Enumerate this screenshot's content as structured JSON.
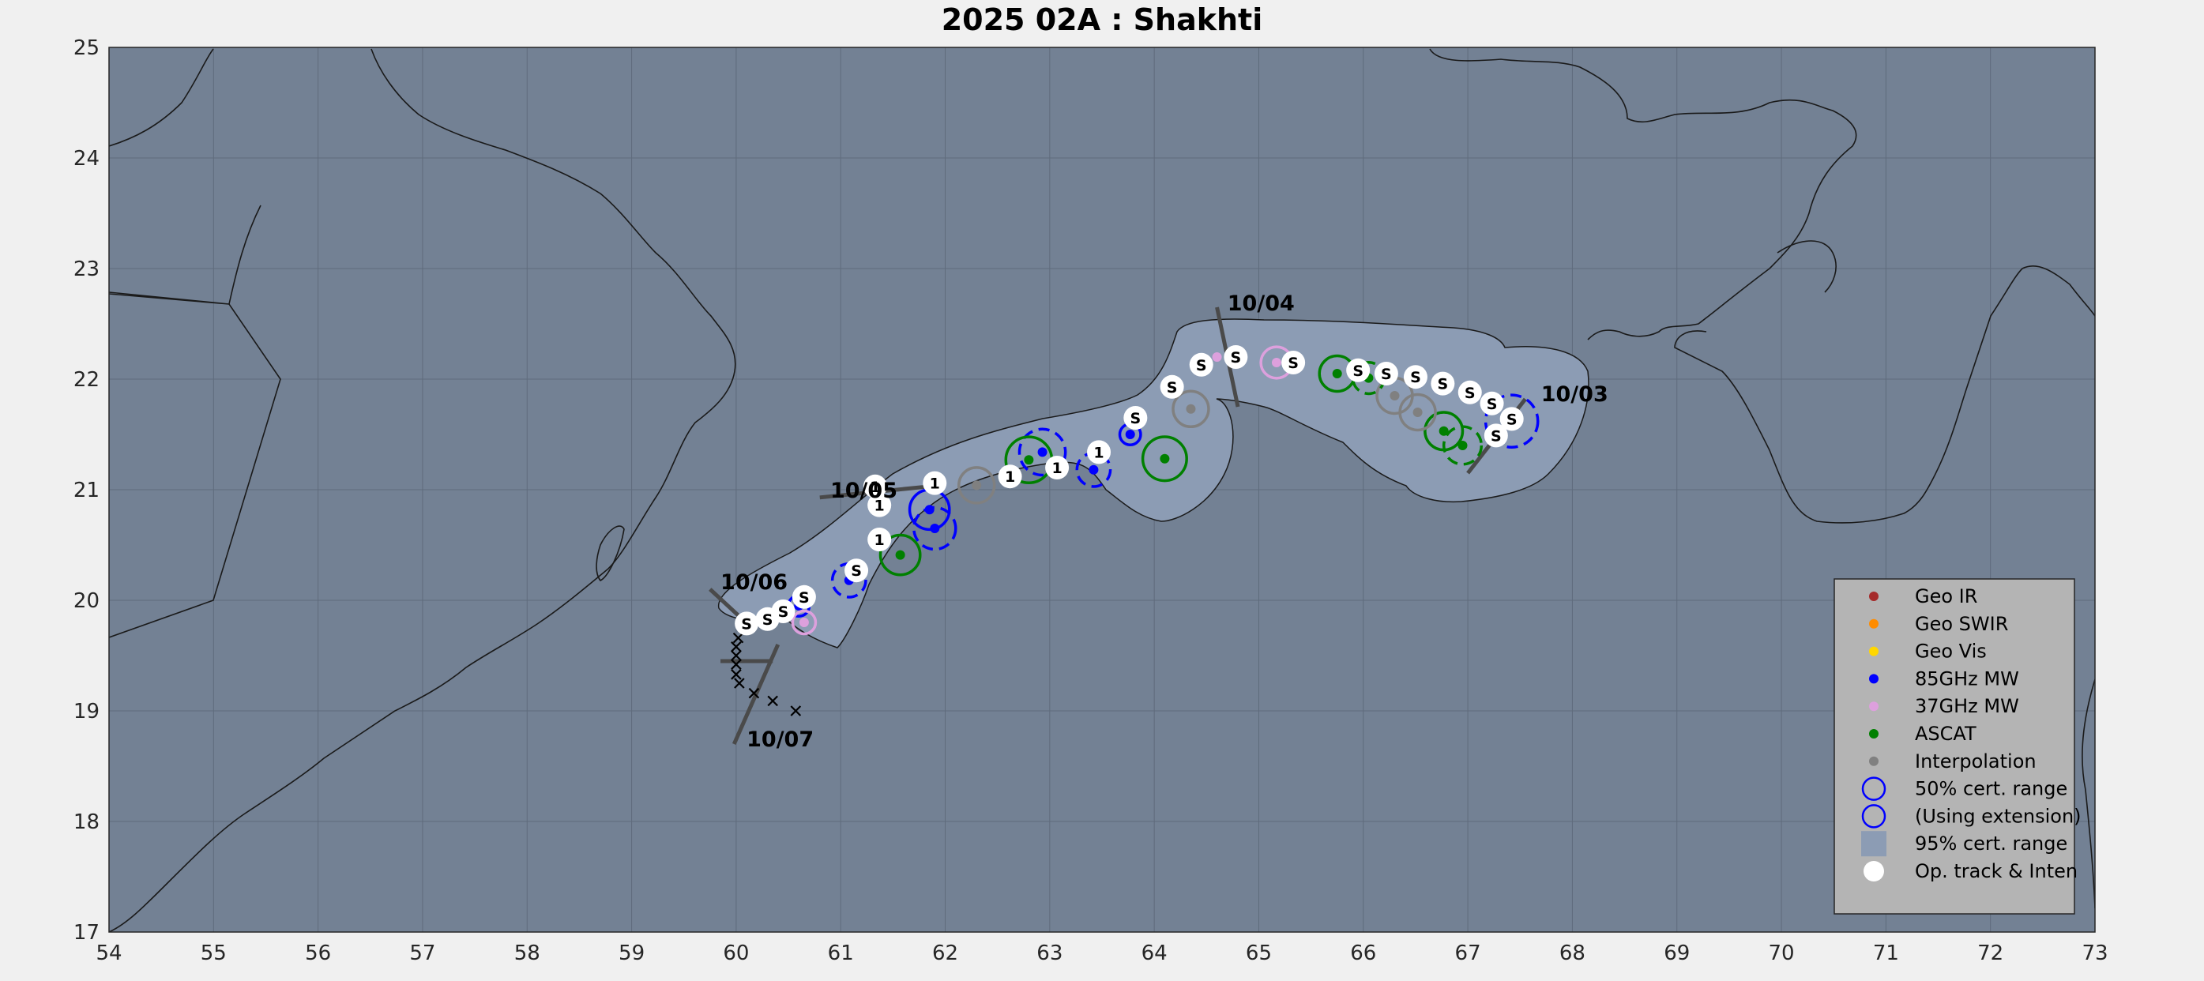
{
  "title": "2025  02A :  Shakhti",
  "x_ticks": [
    54,
    55,
    56,
    57,
    58,
    59,
    60,
    61,
    62,
    63,
    64,
    65,
    66,
    67,
    68,
    69,
    70,
    71,
    72,
    73
  ],
  "y_ticks": [
    17,
    18,
    19,
    20,
    21,
    22,
    23,
    24,
    25
  ],
  "colors": {
    "figure_bg": "#f0f0f0",
    "ocean": "#738194",
    "cone": "#8c9cb4",
    "coast": "#1a1a1a",
    "grid": "#5f6b7c",
    "geo_ir": "#a52a2a",
    "geo_swir": "#ff8c00",
    "geo_vis": "#ffd700",
    "mw85": "#0000ff",
    "mw37": "#dda0dd",
    "ascat": "#008000",
    "interp": "#808080",
    "legend_bg": "#b4b4b4",
    "bar": "#4a4a4a"
  },
  "legend": {
    "position": "bottom-right",
    "items": [
      {
        "label": "Geo IR",
        "symbol": "dot",
        "color": "#a52a2a"
      },
      {
        "label": "Geo SWIR",
        "symbol": "dot",
        "color": "#ff8c00"
      },
      {
        "label": "Geo Vis",
        "symbol": "dot",
        "color": "#ffd700"
      },
      {
        "label": "85GHz MW",
        "symbol": "dot",
        "color": "#0000ff"
      },
      {
        "label": "37GHz MW",
        "symbol": "dot",
        "color": "#dda0dd"
      },
      {
        "label": "ASCAT",
        "symbol": "dot",
        "color": "#008000"
      },
      {
        "label": "Interpolation",
        "symbol": "dot",
        "color": "#808080"
      },
      {
        "label": "50% cert. range",
        "symbol": "ring",
        "color": "#0000ff"
      },
      {
        "label": "(Using extension)",
        "symbol": "ring",
        "color": "#0000ff"
      },
      {
        "label": "95% cert. range",
        "symbol": "square",
        "color": "#8c9cb4"
      },
      {
        "label": "Op. track & Inten",
        "symbol": "white-dot",
        "color": "#ffffff"
      }
    ]
  },
  "chart_data": {
    "type": "map",
    "xlim": [
      54,
      73
    ],
    "ylim": [
      17,
      25
    ],
    "grid": true,
    "date_labels": [
      {
        "text": "10/03",
        "lon": 67.7,
        "lat": 21.8
      },
      {
        "text": "10/04",
        "lon": 64.7,
        "lat": 22.62
      },
      {
        "text": "10/05",
        "lon": 60.9,
        "lat": 20.93
      },
      {
        "text": "10/06",
        "lon": 59.85,
        "lat": 20.1
      },
      {
        "text": "10/07",
        "lon": 60.1,
        "lat": 18.68
      }
    ],
    "day_bars": [
      {
        "lon1": 67.0,
        "lat1": 21.15,
        "lon2": 67.55,
        "lat2": 21.82
      },
      {
        "lon1": 64.6,
        "lat1": 22.65,
        "lon2": 64.8,
        "lat2": 21.75
      },
      {
        "lon1": 60.8,
        "lat1": 20.93,
        "lon2": 61.85,
        "lat2": 21.03
      },
      {
        "lon1": 59.75,
        "lat1": 20.1,
        "lon2": 60.15,
        "lat2": 19.75
      },
      {
        "lon1": 59.85,
        "lat1": 19.45,
        "lon2": 60.35,
        "lat2": 19.45
      },
      {
        "lon1": 59.98,
        "lat1": 18.7,
        "lon2": 60.4,
        "lat2": 19.6
      }
    ],
    "forecast_x": [
      {
        "lon": 60.57,
        "lat": 19.0
      },
      {
        "lon": 60.35,
        "lat": 19.09
      },
      {
        "lon": 60.17,
        "lat": 19.16
      },
      {
        "lon": 60.03,
        "lat": 19.25
      },
      {
        "lon": 60.0,
        "lat": 19.33
      },
      {
        "lon": 60.0,
        "lat": 19.42
      },
      {
        "lon": 60.0,
        "lat": 19.5
      },
      {
        "lon": 60.0,
        "lat": 19.58
      },
      {
        "lon": 60.02,
        "lat": 19.66
      }
    ],
    "fixes": [
      {
        "type": "mw85",
        "lon": 67.42,
        "lat": 21.62,
        "ring": 0.25,
        "dashed": true
      },
      {
        "type": "ascat",
        "lon": 66.95,
        "lat": 21.4,
        "ring": 0.18,
        "dashed": true
      },
      {
        "type": "ascat",
        "lon": 66.77,
        "lat": 21.53,
        "ring": 0.18,
        "dashed": false
      },
      {
        "type": "interp",
        "lon": 66.52,
        "lat": 21.7,
        "ring": 0.17,
        "dashed": false
      },
      {
        "type": "interp",
        "lon": 66.3,
        "lat": 21.85,
        "ring": 0.17,
        "dashed": false
      },
      {
        "type": "ascat",
        "lon": 66.05,
        "lat": 22.01,
        "ring": 0.15,
        "dashed": true
      },
      {
        "type": "ascat",
        "lon": 65.75,
        "lat": 22.05,
        "ring": 0.17,
        "dashed": false
      },
      {
        "type": "mw37",
        "lon": 65.17,
        "lat": 22.15,
        "ring": 0.15,
        "dashed": false
      },
      {
        "type": "mw37",
        "lon": 64.6,
        "lat": 22.2,
        "ring": 0.0,
        "dashed": false
      },
      {
        "type": "interp",
        "lon": 64.35,
        "lat": 21.73,
        "ring": 0.17,
        "dashed": false
      },
      {
        "type": "ascat",
        "lon": 64.1,
        "lat": 21.28,
        "ring": 0.21,
        "dashed": false
      },
      {
        "type": "mw85",
        "lon": 63.77,
        "lat": 21.5,
        "ring": 0.1,
        "dashed": false
      },
      {
        "type": "mw85",
        "lon": 63.42,
        "lat": 21.18,
        "ring": 0.16,
        "dashed": true
      },
      {
        "type": "mw85",
        "lon": 62.93,
        "lat": 21.34,
        "ring": 0.22,
        "dashed": true
      },
      {
        "type": "ascat",
        "lon": 62.8,
        "lat": 21.27,
        "ring": 0.22,
        "dashed": false
      },
      {
        "type": "interp",
        "lon": 62.3,
        "lat": 21.04,
        "ring": 0.17,
        "dashed": false
      },
      {
        "type": "mw85",
        "lon": 61.85,
        "lat": 20.82,
        "ring": 0.19,
        "dashed": false
      },
      {
        "type": "mw85",
        "lon": 61.9,
        "lat": 20.65,
        "ring": 0.2,
        "dashed": true
      },
      {
        "type": "ascat",
        "lon": 61.57,
        "lat": 20.41,
        "ring": 0.19,
        "dashed": false
      },
      {
        "type": "mw85",
        "lon": 61.08,
        "lat": 20.18,
        "ring": 0.16,
        "dashed": true
      },
      {
        "type": "mw85",
        "lon": 60.6,
        "lat": 19.95,
        "ring": 0.1,
        "dashed": false
      },
      {
        "type": "mw37",
        "lon": 60.65,
        "lat": 19.8,
        "ring": 0.11,
        "dashed": false
      }
    ],
    "op_track": [
      {
        "lon": 67.27,
        "lat": 21.49,
        "label": "S"
      },
      {
        "lon": 67.42,
        "lat": 21.64,
        "label": "S"
      },
      {
        "lon": 67.23,
        "lat": 21.78,
        "label": "S"
      },
      {
        "lon": 67.02,
        "lat": 21.88,
        "label": "S"
      },
      {
        "lon": 66.76,
        "lat": 21.96,
        "label": "S"
      },
      {
        "lon": 66.5,
        "lat": 22.02,
        "label": "S"
      },
      {
        "lon": 66.22,
        "lat": 22.05,
        "label": "S"
      },
      {
        "lon": 65.95,
        "lat": 22.08,
        "label": "S"
      },
      {
        "lon": 65.33,
        "lat": 22.15,
        "label": "S"
      },
      {
        "lon": 64.78,
        "lat": 22.2,
        "label": "S"
      },
      {
        "lon": 64.45,
        "lat": 22.13,
        "label": "S"
      },
      {
        "lon": 64.17,
        "lat": 21.93,
        "label": "S"
      },
      {
        "lon": 63.82,
        "lat": 21.65,
        "label": "S"
      },
      {
        "lon": 63.47,
        "lat": 21.34,
        "label": "1"
      },
      {
        "lon": 63.07,
        "lat": 21.2,
        "label": "1"
      },
      {
        "lon": 62.62,
        "lat": 21.12,
        "label": "1"
      },
      {
        "lon": 61.9,
        "lat": 21.06,
        "label": "1"
      },
      {
        "lon": 61.33,
        "lat": 21.03,
        "label": "1"
      },
      {
        "lon": 61.37,
        "lat": 20.86,
        "label": "1"
      },
      {
        "lon": 61.37,
        "lat": 20.55,
        "label": "1"
      },
      {
        "lon": 61.15,
        "lat": 20.27,
        "label": "S"
      },
      {
        "lon": 60.65,
        "lat": 20.03,
        "label": "S"
      },
      {
        "lon": 60.45,
        "lat": 19.9,
        "label": "S"
      },
      {
        "lon": 60.3,
        "lat": 19.83,
        "label": "S"
      },
      {
        "lon": 60.1,
        "lat": 19.79,
        "label": "S"
      }
    ]
  }
}
